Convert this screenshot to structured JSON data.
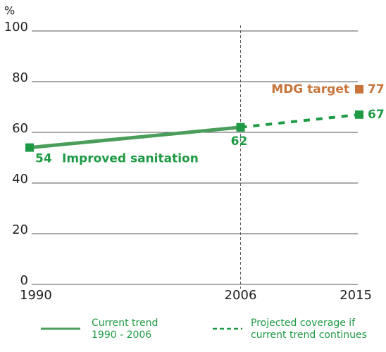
{
  "chart_data": {
    "type": "line",
    "y_label": "%",
    "x": [
      1990,
      2006,
      2015
    ],
    "xlim": [
      1990,
      2015
    ],
    "xticks": [
      1990,
      2006,
      2015
    ],
    "ylim": [
      0,
      100
    ],
    "yticks": [
      0,
      20,
      40,
      60,
      80,
      100
    ],
    "grid": true,
    "series": [
      {
        "name": "Current trend 1990 - 2006",
        "color": "#4a9e5c",
        "dash": false,
        "values": [
          54,
          62,
          null
        ]
      },
      {
        "name": "Projected coverage if current trend continues",
        "color": "#1e9a44",
        "dash": true,
        "values": [
          null,
          62,
          67
        ]
      }
    ],
    "target": {
      "name": "MDG target",
      "x": 2015,
      "value": 77,
      "color": "#c8743a"
    },
    "line_label": "Improved sanitation",
    "legend": "bottom"
  }
}
